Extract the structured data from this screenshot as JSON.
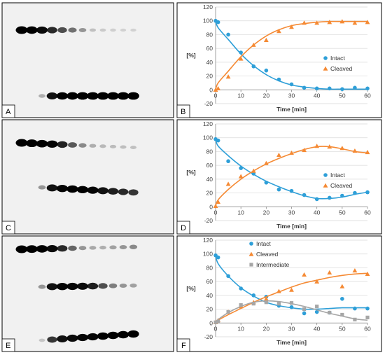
{
  "panel_labels": [
    "A",
    "B",
    "C",
    "D",
    "E",
    "F"
  ],
  "colors": {
    "intact": "#2E9FD8",
    "cleaved": "#F58A34",
    "intermediate": "#A6A6A6",
    "gel_bg": "#f1f1f1",
    "band": "#000000"
  },
  "gels": [
    {
      "lanes": 12,
      "top_band_intensity": [
        1.0,
        0.95,
        0.88,
        0.75,
        0.6,
        0.45,
        0.3,
        0.12,
        0.08,
        0.06,
        0.05,
        0.05
      ],
      "bottom_band_intensity": [
        0,
        0,
        0.2,
        0.85,
        0.92,
        0.95,
        0.97,
        0.98,
        0.98,
        0.98,
        0.98,
        0.98
      ]
    },
    {
      "lanes": 12,
      "top_band_intensity": [
        1.0,
        0.98,
        0.95,
        0.9,
        0.78,
        0.55,
        0.35,
        0.2,
        0.15,
        0.14,
        0.13,
        0.12
      ],
      "bottom_band_intensity": [
        0,
        0,
        0.3,
        0.85,
        0.9,
        0.92,
        0.92,
        0.9,
        0.85,
        0.8,
        0.75,
        0.7
      ]
    },
    {
      "lanes": 12,
      "top_band_intensity": [
        1.0,
        0.98,
        0.95,
        0.88,
        0.75,
        0.5,
        0.3,
        0.22,
        0.2,
        0.25,
        0.3,
        0.35
      ],
      "middle_band_intensity": [
        0,
        0,
        0.3,
        0.85,
        0.9,
        0.9,
        0.88,
        0.8,
        0.6,
        0.4,
        0.3,
        0.25
      ],
      "bottom_band_intensity": [
        0,
        0,
        0.1,
        0.7,
        0.85,
        0.88,
        0.9,
        0.9,
        0.92,
        0.92,
        0.92,
        0.92
      ]
    }
  ],
  "chart_data": [
    {
      "type": "scatter",
      "xlabel": "Time [min]",
      "ylabel": "[%]",
      "xlim": [
        0,
        60
      ],
      "ylim": [
        -20,
        120
      ],
      "xticks": [
        0,
        10,
        20,
        30,
        40,
        50,
        60
      ],
      "yticks": [
        -20,
        0,
        20,
        40,
        60,
        80,
        100,
        120
      ],
      "legend": "right",
      "series": [
        {
          "name": "Intact",
          "color": "#2E9FD8",
          "marker": "circle",
          "x": [
            0,
            1,
            5,
            10,
            15,
            20,
            25,
            30,
            35,
            40,
            45,
            50,
            55,
            60
          ],
          "y": [
            100,
            98,
            80,
            54,
            34,
            28,
            15,
            8,
            3,
            2,
            2,
            1,
            3,
            2
          ],
          "fit_y": [
            100,
            90,
            73,
            52,
            35,
            22,
            13,
            7,
            4,
            2,
            1,
            1,
            1,
            1
          ]
        },
        {
          "name": "Cleaved",
          "color": "#F58A34",
          "marker": "triangle",
          "x": [
            0,
            1,
            5,
            10,
            15,
            20,
            25,
            30,
            35,
            40,
            45,
            50,
            55,
            60
          ],
          "y": [
            0,
            2,
            19,
            45,
            65,
            72,
            85,
            91,
            97,
            97,
            98,
            99,
            97,
            98
          ],
          "fit_y": [
            0,
            10,
            27,
            48,
            65,
            78,
            87,
            93,
            96,
            98,
            99,
            99,
            99,
            99
          ]
        }
      ]
    },
    {
      "type": "scatter",
      "xlabel": "Time [min]",
      "ylabel": "[%]",
      "xlim": [
        0,
        60
      ],
      "ylim": [
        -20,
        120
      ],
      "xticks": [
        0,
        10,
        20,
        30,
        40,
        50,
        60
      ],
      "yticks": [
        -20,
        0,
        20,
        40,
        60,
        80,
        100,
        120
      ],
      "legend": "right",
      "series": [
        {
          "name": "Intact",
          "color": "#2E9FD8",
          "marker": "circle",
          "x": [
            0,
            1,
            5,
            10,
            15,
            20,
            25,
            30,
            35,
            40,
            45,
            50,
            55,
            60
          ],
          "y": [
            98,
            96,
            66,
            56,
            48,
            35,
            25,
            23,
            17,
            11,
            13,
            16,
            20,
            21
          ],
          "fit_y": [
            98,
            88,
            74,
            59,
            47,
            37,
            29,
            22,
            16,
            12,
            12,
            14,
            18,
            21
          ]
        },
        {
          "name": "Cleaved",
          "color": "#F58A34",
          "marker": "triangle",
          "x": [
            0,
            1,
            5,
            10,
            15,
            20,
            25,
            30,
            35,
            40,
            45,
            50,
            55,
            60
          ],
          "y": [
            1,
            7,
            33,
            44,
            52,
            63,
            75,
            78,
            82,
            88,
            87,
            85,
            81,
            79
          ],
          "fit_y": [
            1,
            10,
            25,
            40,
            52,
            62,
            70,
            77,
            83,
            87,
            87,
            84,
            80,
            78
          ]
        }
      ]
    },
    {
      "type": "scatter",
      "xlabel": "Time [min]",
      "ylabel": "[%]",
      "xlim": [
        0,
        60
      ],
      "ylim": [
        -20,
        120
      ],
      "xticks": [
        0,
        10,
        20,
        30,
        40,
        50,
        60
      ],
      "yticks": [
        -20,
        0,
        20,
        40,
        60,
        80,
        100,
        120
      ],
      "legend": "top-center",
      "series": [
        {
          "name": "Intact",
          "color": "#2E9FD8",
          "marker": "circle",
          "x": [
            0,
            1,
            5,
            10,
            15,
            20,
            25,
            30,
            35,
            40,
            45,
            50,
            55,
            60
          ],
          "y": [
            98,
            95,
            68,
            50,
            40,
            38,
            25,
            23,
            14,
            16,
            15,
            35,
            21,
            21
          ],
          "fit_y": [
            98,
            86,
            68,
            51,
            39,
            30,
            25,
            22,
            20,
            20,
            21,
            22,
            22,
            22
          ]
        },
        {
          "name": "Cleaved",
          "color": "#F58A34",
          "marker": "triangle",
          "x": [
            0,
            1,
            5,
            10,
            15,
            20,
            25,
            30,
            35,
            40,
            45,
            50,
            55,
            60
          ],
          "y": [
            1,
            4,
            16,
            24,
            30,
            35,
            46,
            48,
            70,
            60,
            73,
            53,
            76,
            71
          ],
          "fit_y": [
            1,
            4,
            12,
            21,
            30,
            38,
            45,
            52,
            58,
            62,
            66,
            69,
            71,
            72
          ]
        },
        {
          "name": "Intermediate",
          "color": "#A6A6A6",
          "marker": "square",
          "x": [
            0,
            1,
            5,
            10,
            15,
            20,
            25,
            30,
            35,
            40,
            45,
            50,
            55,
            60
          ],
          "y": [
            1,
            2,
            16,
            26,
            28,
            30,
            28,
            29,
            20,
            24,
            15,
            12,
            5,
            8
          ],
          "fit_y": [
            1,
            5,
            15,
            24,
            30,
            32,
            31,
            28,
            24,
            19,
            14,
            10,
            6,
            4
          ]
        }
      ]
    }
  ]
}
